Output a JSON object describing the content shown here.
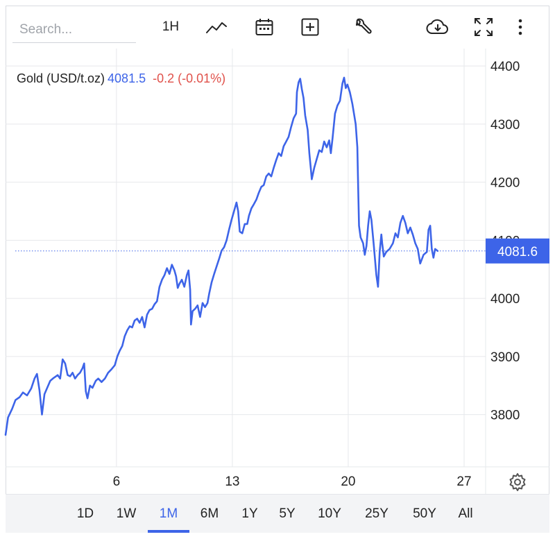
{
  "toolbar": {
    "search_placeholder": "Search...",
    "interval_label": "1H",
    "icons": [
      "line-chart-icon",
      "calendar-icon",
      "add-indicator-icon",
      "wrench-icon",
      "cloud-download-icon",
      "fullscreen-icon",
      "more-vertical-icon"
    ]
  },
  "legend": {
    "instrument": "Gold (USD/t.oz)",
    "price": "4081.5",
    "change": "-0.2 (-0.01%)"
  },
  "current_price_label": "4081.6",
  "colors": {
    "line": "#3d64e8",
    "negative": "#e0514a",
    "accent": "#3d64e8"
  },
  "ranges": {
    "items": [
      "1D",
      "1W",
      "1M",
      "6M",
      "1Y",
      "5Y",
      "10Y",
      "25Y",
      "50Y",
      "All"
    ],
    "active": "1M"
  },
  "chart_data": {
    "type": "line",
    "title": "",
    "xlabel": "",
    "ylabel": "",
    "x_tick_labels": [
      "6",
      "13",
      "20",
      "27"
    ],
    "x_tick_day": [
      6,
      13,
      20,
      27
    ],
    "y_ticks": [
      3800,
      3900,
      4000,
      4100,
      4200,
      4300,
      4400
    ],
    "ylim": [
      3710,
      4430
    ],
    "xlim": [
      -0.7,
      28.3
    ],
    "grid": true,
    "current_value": 4081.6,
    "series": [
      {
        "values": [
          [
            -0.7,
            3765
          ],
          [
            -0.55,
            3795
          ],
          [
            -0.3,
            3810
          ],
          [
            -0.1,
            3825
          ],
          [
            0.15,
            3830
          ],
          [
            0.35,
            3838
          ],
          [
            0.6,
            3833
          ],
          [
            0.85,
            3845
          ],
          [
            1.05,
            3862
          ],
          [
            1.2,
            3870
          ],
          [
            1.35,
            3842
          ],
          [
            1.5,
            3800
          ],
          [
            1.65,
            3835
          ],
          [
            1.8,
            3845
          ],
          [
            2.0,
            3858
          ],
          [
            2.2,
            3863
          ],
          [
            2.45,
            3868
          ],
          [
            2.6,
            3862
          ],
          [
            2.75,
            3895
          ],
          [
            2.9,
            3888
          ],
          [
            3.05,
            3868
          ],
          [
            3.2,
            3866
          ],
          [
            3.35,
            3872
          ],
          [
            3.5,
            3862
          ],
          [
            3.65,
            3868
          ],
          [
            3.8,
            3872
          ],
          [
            3.95,
            3880
          ],
          [
            4.05,
            3888
          ],
          [
            4.15,
            3840
          ],
          [
            4.25,
            3828
          ],
          [
            4.4,
            3850
          ],
          [
            4.55,
            3846
          ],
          [
            4.75,
            3858
          ],
          [
            4.9,
            3862
          ],
          [
            5.1,
            3856
          ],
          [
            5.3,
            3862
          ],
          [
            5.5,
            3872
          ],
          [
            5.7,
            3878
          ],
          [
            5.9,
            3885
          ],
          [
            6.05,
            3900
          ],
          [
            6.2,
            3910
          ],
          [
            6.35,
            3918
          ],
          [
            6.5,
            3935
          ],
          [
            6.65,
            3945
          ],
          [
            6.8,
            3952
          ],
          [
            6.95,
            3950
          ],
          [
            7.1,
            3962
          ],
          [
            7.25,
            3965
          ],
          [
            7.4,
            3958
          ],
          [
            7.55,
            3968
          ],
          [
            7.7,
            3950
          ],
          [
            7.85,
            3972
          ],
          [
            8.0,
            3980
          ],
          [
            8.15,
            3982
          ],
          [
            8.3,
            3990
          ],
          [
            8.45,
            3995
          ],
          [
            8.6,
            4020
          ],
          [
            8.75,
            4032
          ],
          [
            8.9,
            4040
          ],
          [
            9.05,
            4052
          ],
          [
            9.2,
            4042
          ],
          [
            9.35,
            4058
          ],
          [
            9.5,
            4048
          ],
          [
            9.6,
            4038
          ],
          [
            9.7,
            4018
          ],
          [
            9.8,
            4025
          ],
          [
            9.95,
            4032
          ],
          [
            10.1,
            4020
          ],
          [
            10.25,
            4040
          ],
          [
            10.35,
            4048
          ],
          [
            10.45,
            4015
          ],
          [
            10.5,
            3955
          ],
          [
            10.6,
            3978
          ],
          [
            10.75,
            3982
          ],
          [
            10.9,
            3988
          ],
          [
            11.05,
            3968
          ],
          [
            11.2,
            3992
          ],
          [
            11.35,
            3985
          ],
          [
            11.5,
            3992
          ],
          [
            11.6,
            4008
          ],
          [
            11.75,
            4028
          ],
          [
            11.9,
            4042
          ],
          [
            12.05,
            4055
          ],
          [
            12.2,
            4068
          ],
          [
            12.35,
            4082
          ],
          [
            12.5,
            4088
          ],
          [
            12.65,
            4100
          ],
          [
            12.8,
            4118
          ],
          [
            12.95,
            4135
          ],
          [
            13.1,
            4150
          ],
          [
            13.25,
            4165
          ],
          [
            13.35,
            4150
          ],
          [
            13.45,
            4115
          ],
          [
            13.6,
            4112
          ],
          [
            13.75,
            4128
          ],
          [
            13.9,
            4128
          ],
          [
            14.0,
            4142
          ],
          [
            14.15,
            4155
          ],
          [
            14.3,
            4162
          ],
          [
            14.45,
            4170
          ],
          [
            14.6,
            4182
          ],
          [
            14.75,
            4192
          ],
          [
            14.9,
            4195
          ],
          [
            15.05,
            4210
          ],
          [
            15.2,
            4215
          ],
          [
            15.35,
            4210
          ],
          [
            15.5,
            4225
          ],
          [
            15.65,
            4238
          ],
          [
            15.8,
            4250
          ],
          [
            15.95,
            4245
          ],
          [
            16.1,
            4262
          ],
          [
            16.25,
            4270
          ],
          [
            16.4,
            4278
          ],
          [
            16.55,
            4295
          ],
          [
            16.7,
            4310
          ],
          [
            16.85,
            4318
          ],
          [
            16.9,
            4355
          ],
          [
            17.0,
            4372
          ],
          [
            17.1,
            4378
          ],
          [
            17.2,
            4360
          ],
          [
            17.3,
            4345
          ],
          [
            17.4,
            4315
          ],
          [
            17.55,
            4290
          ],
          [
            17.65,
            4250
          ],
          [
            17.75,
            4220
          ],
          [
            17.8,
            4205
          ],
          [
            17.95,
            4225
          ],
          [
            18.1,
            4240
          ],
          [
            18.25,
            4255
          ],
          [
            18.4,
            4252
          ],
          [
            18.55,
            4270
          ],
          [
            18.7,
            4260
          ],
          [
            18.85,
            4272
          ],
          [
            18.95,
            4250
          ],
          [
            19.05,
            4275
          ],
          [
            19.2,
            4318
          ],
          [
            19.35,
            4332
          ],
          [
            19.5,
            4340
          ],
          [
            19.65,
            4370
          ],
          [
            19.75,
            4380
          ],
          [
            19.85,
            4362
          ],
          [
            19.95,
            4368
          ],
          [
            20.1,
            4355
          ],
          [
            20.25,
            4335
          ],
          [
            20.45,
            4300
          ],
          [
            20.55,
            4260
          ],
          [
            20.6,
            4190
          ],
          [
            20.65,
            4125
          ],
          [
            20.75,
            4105
          ],
          [
            20.9,
            4095
          ],
          [
            21.0,
            4075
          ],
          [
            21.1,
            4090
          ],
          [
            21.2,
            4125
          ],
          [
            21.3,
            4150
          ],
          [
            21.4,
            4135
          ],
          [
            21.55,
            4090
          ],
          [
            21.7,
            4040
          ],
          [
            21.8,
            4020
          ],
          [
            21.9,
            4080
          ],
          [
            22.0,
            4110
          ],
          [
            22.05,
            4095
          ],
          [
            22.15,
            4072
          ],
          [
            22.3,
            4080
          ],
          [
            22.5,
            4085
          ],
          [
            22.7,
            4095
          ],
          [
            22.85,
            4112
          ],
          [
            23.0,
            4105
          ],
          [
            23.15,
            4130
          ],
          [
            23.3,
            4142
          ],
          [
            23.45,
            4130
          ],
          [
            23.6,
            4112
          ],
          [
            23.75,
            4122
          ],
          [
            23.9,
            4110
          ],
          [
            24.05,
            4095
          ],
          [
            24.2,
            4085
          ],
          [
            24.35,
            4060
          ],
          [
            24.55,
            4075
          ],
          [
            24.75,
            4080
          ],
          [
            24.85,
            4118
          ],
          [
            24.95,
            4125
          ],
          [
            25.05,
            4085
          ],
          [
            25.15,
            4070
          ],
          [
            25.25,
            4085
          ],
          [
            25.4,
            4081.6
          ]
        ]
      }
    ]
  }
}
